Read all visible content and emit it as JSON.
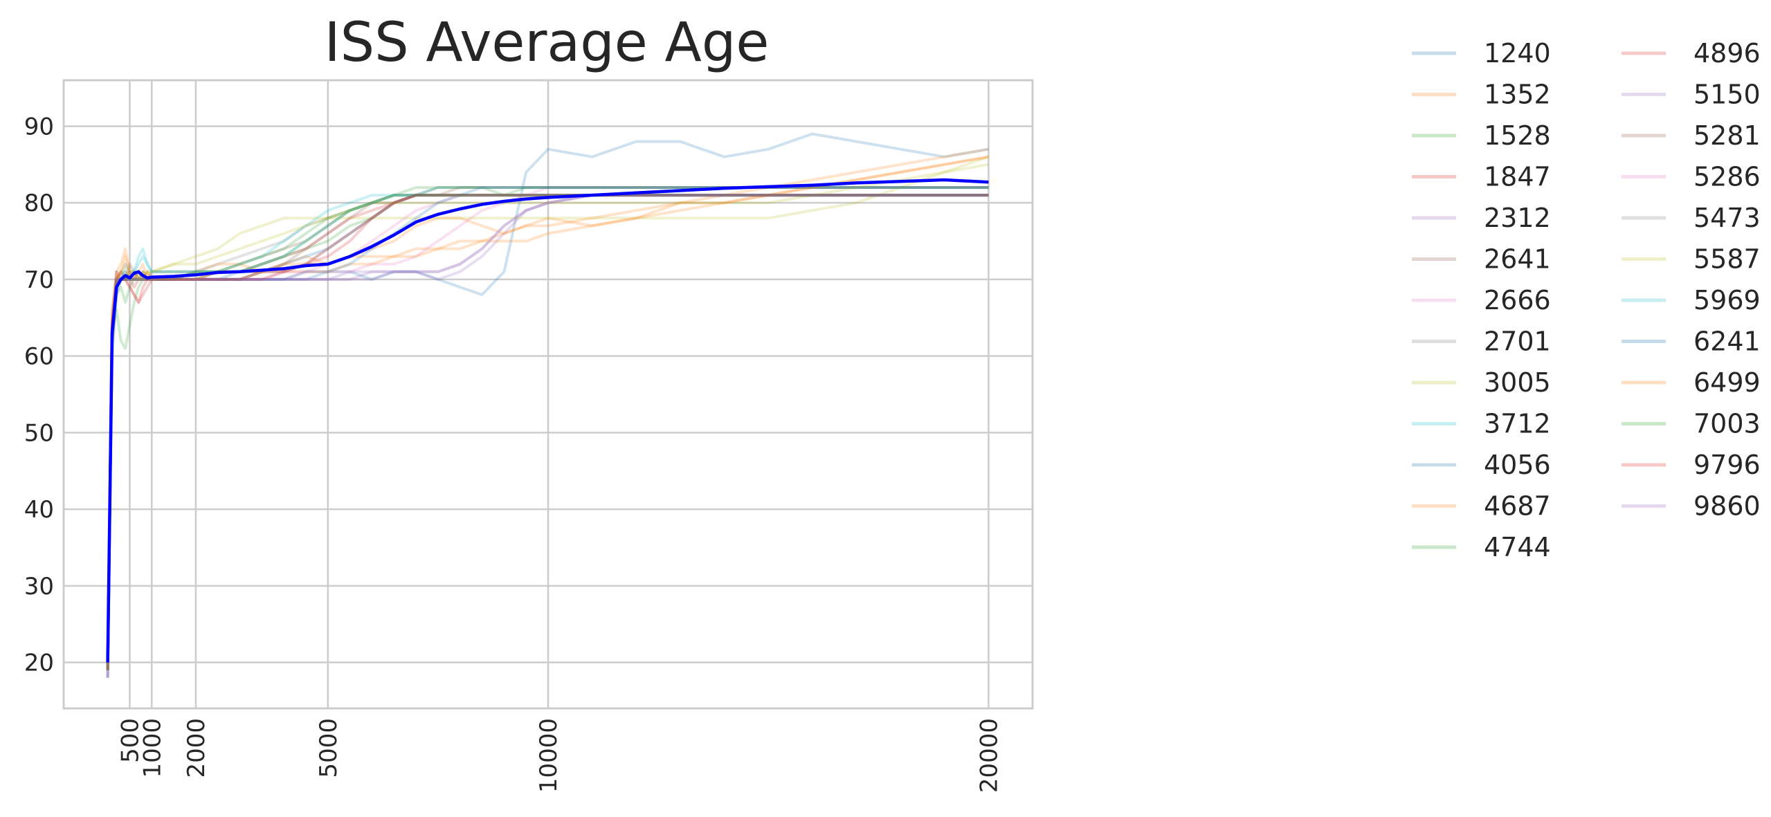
{
  "chart_data": {
    "type": "line",
    "title": "ISS Average Age",
    "xlabel": "",
    "ylabel": "",
    "x_ticks": [
      500,
      1000,
      2000,
      5000,
      10000,
      20000
    ],
    "y_ticks": [
      20,
      30,
      40,
      50,
      60,
      70,
      80,
      90
    ],
    "xlim": [
      -1000,
      21000
    ],
    "ylim": [
      14,
      96
    ],
    "grid": true,
    "legend": {
      "placement": "outside-right",
      "columns": 2
    },
    "x": [
      0,
      100,
      200,
      300,
      400,
      500,
      600,
      700,
      800,
      900,
      1000,
      1500,
      2000,
      2500,
      3000,
      3500,
      4000,
      4500,
      5000,
      5500,
      6000,
      6500,
      7000,
      7500,
      8000,
      8500,
      9000,
      9500,
      10000,
      11000,
      12000,
      13000,
      14000,
      15000,
      16000,
      17000,
      18000,
      19000,
      20000
    ],
    "mean_series": {
      "name": "",
      "color": "#0000ff",
      "values": [
        20,
        63,
        69,
        70,
        70.5,
        70.2,
        70.8,
        71,
        70.5,
        70.2,
        70.3,
        70.4,
        70.6,
        70.9,
        71,
        71.2,
        71.4,
        71.8,
        72,
        73,
        74.3,
        75.8,
        77.5,
        78.5,
        79.2,
        79.8,
        80.2,
        80.5,
        80.7,
        81,
        81.3,
        81.6,
        81.9,
        82.1,
        82.3,
        82.6,
        82.8,
        83,
        82.7
      ]
    },
    "series": [
      {
        "name": "1240",
        "color": "#1f77b4",
        "values": [
          18,
          60,
          68,
          70,
          70,
          70,
          70,
          71,
          70,
          70,
          70,
          70,
          70,
          70,
          70,
          70,
          70,
          70,
          71,
          71,
          70,
          71,
          71,
          70,
          69,
          68,
          71,
          84,
          87,
          86,
          88,
          88,
          86,
          87,
          89,
          88,
          87,
          86,
          87
        ]
      },
      {
        "name": "1352",
        "color": "#ff7f0e",
        "values": [
          19,
          64,
          70,
          71,
          73,
          71,
          70,
          71,
          72,
          70,
          71,
          71,
          71,
          72,
          72,
          71,
          72,
          73,
          72,
          73,
          74,
          75,
          77,
          78,
          78,
          77,
          76,
          77,
          78,
          77,
          78,
          80,
          80,
          81,
          82,
          83,
          84,
          85,
          86
        ]
      },
      {
        "name": "1528",
        "color": "#2ca02c",
        "values": [
          20,
          62,
          68,
          69,
          67,
          69,
          70,
          70,
          71,
          70,
          70,
          70,
          71,
          71,
          71,
          72,
          73,
          74,
          75,
          77,
          78,
          80,
          81,
          82,
          82,
          82,
          81,
          82,
          82,
          82,
          82,
          82,
          82,
          82,
          82,
          82,
          82,
          82,
          82
        ]
      },
      {
        "name": "1847",
        "color": "#d62728",
        "values": [
          19,
          66,
          71,
          70,
          70,
          70,
          69,
          70,
          71,
          70,
          70,
          70,
          70,
          71,
          71,
          72,
          73,
          74,
          76,
          78,
          79,
          80,
          81,
          81,
          81,
          81,
          81,
          81,
          81,
          81,
          81,
          81,
          81,
          81,
          81,
          81,
          81,
          81,
          81
        ]
      },
      {
        "name": "2312",
        "color": "#9467bd",
        "values": [
          18,
          61,
          69,
          70,
          71,
          70,
          70,
          70,
          70,
          70,
          70,
          70,
          70,
          70,
          70,
          70,
          70,
          70,
          70,
          70,
          71,
          71,
          71,
          70,
          71,
          73,
          76,
          79,
          80,
          81,
          81,
          81,
          81,
          81,
          81,
          81,
          81,
          81,
          81
        ]
      },
      {
        "name": "2641",
        "color": "#8c564b",
        "values": [
          19,
          64,
          70,
          71,
          70,
          72,
          71,
          70,
          70,
          71,
          70,
          70,
          71,
          71,
          72,
          73,
          74,
          75,
          77,
          79,
          80,
          81,
          81,
          81,
          82,
          82,
          82,
          82,
          82,
          82,
          82,
          82,
          82,
          82,
          82,
          82,
          82,
          82,
          82
        ]
      },
      {
        "name": "2666",
        "color": "#e377c2",
        "values": [
          20,
          63,
          70,
          70,
          70,
          71,
          70,
          71,
          70,
          70,
          70,
          70,
          70,
          70,
          70,
          70,
          70,
          71,
          71,
          71,
          72,
          72,
          73,
          75,
          77,
          79,
          80,
          81,
          82,
          82,
          82,
          82,
          82,
          82,
          82,
          82,
          82,
          82,
          82
        ]
      },
      {
        "name": "2701",
        "color": "#7f7f7f",
        "values": [
          19,
          62,
          69,
          70,
          70,
          70,
          71,
          70,
          70,
          70,
          71,
          71,
          71,
          72,
          73,
          74,
          75,
          77,
          78,
          79,
          80,
          81,
          81,
          81,
          81,
          81,
          81,
          81,
          81,
          81,
          81,
          81,
          81,
          81,
          81,
          81,
          81,
          81,
          81
        ]
      },
      {
        "name": "3005",
        "color": "#bcbd22",
        "values": [
          20,
          64,
          70,
          71,
          71,
          70,
          70,
          71,
          70,
          71,
          71,
          72,
          73,
          74,
          76,
          77,
          78,
          78,
          78,
          78,
          78,
          78,
          78,
          78,
          78,
          78,
          78,
          78,
          78,
          78,
          78,
          78,
          78,
          78,
          79,
          80,
          82,
          84,
          86
        ]
      },
      {
        "name": "3712",
        "color": "#17becf",
        "values": [
          19,
          63,
          70,
          70,
          72,
          71,
          71,
          73,
          74,
          72,
          71,
          71,
          71,
          71,
          72,
          73,
          75,
          77,
          79,
          80,
          81,
          81,
          81,
          81,
          81,
          81,
          81,
          81,
          81,
          81,
          81,
          81,
          81,
          81,
          81,
          81,
          81,
          81,
          81
        ]
      },
      {
        "name": "4056",
        "color": "#1f77b4",
        "values": [
          19,
          62,
          69,
          70,
          70,
          70,
          70,
          70,
          70,
          70,
          70,
          70,
          70,
          70,
          71,
          71,
          72,
          73,
          74,
          76,
          78,
          80,
          81,
          82,
          82,
          82,
          82,
          82,
          82,
          82,
          82,
          82,
          82,
          82,
          82,
          82,
          82,
          82,
          82
        ]
      },
      {
        "name": "4687",
        "color": "#ff7f0e",
        "values": [
          20,
          65,
          71,
          72,
          74,
          71,
          71,
          70,
          70,
          71,
          70,
          70,
          70,
          70,
          70,
          71,
          71,
          71,
          71,
          72,
          72,
          73,
          73,
          74,
          75,
          75,
          76,
          77,
          77,
          78,
          79,
          80,
          81,
          82,
          83,
          84,
          85,
          86,
          87
        ]
      },
      {
        "name": "4744",
        "color": "#2ca02c",
        "values": [
          19,
          63,
          66,
          62,
          61,
          64,
          67,
          69,
          70,
          70,
          70,
          70,
          70,
          71,
          71,
          72,
          73,
          75,
          77,
          79,
          80,
          81,
          82,
          82,
          82,
          82,
          82,
          82,
          82,
          82,
          82,
          82,
          82,
          82,
          82,
          82,
          82,
          82,
          82
        ]
      },
      {
        "name": "4896",
        "color": "#d62728",
        "values": [
          19,
          64,
          70,
          71,
          70,
          69,
          68,
          67,
          68,
          69,
          70,
          70,
          70,
          70,
          70,
          71,
          71,
          72,
          73,
          75,
          78,
          80,
          81,
          81,
          81,
          81,
          81,
          81,
          81,
          81,
          81,
          81,
          81,
          81,
          81,
          81,
          81,
          81,
          81
        ]
      },
      {
        "name": "5150",
        "color": "#9467bd",
        "values": [
          18,
          62,
          70,
          70,
          70,
          70,
          70,
          70,
          70,
          70,
          70,
          70,
          70,
          70,
          70,
          70,
          70,
          70,
          70,
          71,
          71,
          71,
          71,
          71,
          72,
          74,
          77,
          79,
          80,
          81,
          81,
          81,
          81,
          81,
          81,
          81,
          81,
          81,
          81
        ]
      },
      {
        "name": "5281",
        "color": "#8c564b",
        "values": [
          19,
          63,
          71,
          70,
          70,
          71,
          70,
          70,
          70,
          70,
          70,
          70,
          70,
          70,
          70,
          71,
          72,
          74,
          76,
          78,
          80,
          80,
          81,
          81,
          81,
          81,
          81,
          81,
          81,
          81,
          81,
          81,
          81,
          81,
          81,
          81,
          81,
          81,
          81
        ]
      },
      {
        "name": "5286",
        "color": "#e377c2",
        "values": [
          20,
          64,
          70,
          70,
          70,
          70,
          70,
          70,
          70,
          70,
          70,
          70,
          70,
          70,
          70,
          70,
          71,
          71,
          72,
          73,
          75,
          77,
          79,
          80,
          81,
          81,
          81,
          81,
          81,
          81,
          81,
          81,
          81,
          81,
          81,
          81,
          81,
          81,
          81
        ]
      },
      {
        "name": "5473",
        "color": "#7f7f7f",
        "values": [
          19,
          63,
          70,
          70,
          70,
          70,
          70,
          70,
          70,
          70,
          70,
          70,
          70,
          70,
          70,
          71,
          71,
          72,
          74,
          76,
          78,
          80,
          81,
          81,
          81,
          81,
          81,
          81,
          81,
          81,
          81,
          81,
          81,
          81,
          81,
          81,
          81,
          81,
          81
        ]
      },
      {
        "name": "5587",
        "color": "#bcbd22",
        "values": [
          19,
          64,
          70,
          70,
          70,
          71,
          71,
          70,
          71,
          71,
          71,
          72,
          72,
          73,
          74,
          75,
          76,
          77,
          78,
          79,
          80,
          80,
          80,
          80,
          80,
          80,
          80,
          80,
          80,
          80,
          80,
          80,
          80,
          80,
          81,
          82,
          83,
          84,
          85
        ]
      },
      {
        "name": "5969",
        "color": "#17becf",
        "values": [
          19,
          63,
          70,
          70,
          71,
          70,
          71,
          72,
          73,
          72,
          71,
          71,
          71,
          71,
          71,
          72,
          73,
          75,
          77,
          79,
          80,
          81,
          81,
          81,
          81,
          81,
          81,
          81,
          81,
          81,
          81,
          81,
          81,
          81,
          81,
          81,
          81,
          81,
          81
        ]
      },
      {
        "name": "6241",
        "color": "#1f77b4",
        "values": [
          20,
          63,
          70,
          70,
          70,
          70,
          70,
          70,
          70,
          70,
          70,
          70,
          70,
          70,
          70,
          70,
          70,
          71,
          71,
          72,
          74,
          76,
          78,
          80,
          81,
          82,
          82,
          82,
          82,
          82,
          82,
          82,
          82,
          82,
          82,
          82,
          82,
          82,
          82
        ]
      },
      {
        "name": "6499",
        "color": "#ff7f0e",
        "values": [
          19,
          65,
          70,
          71,
          72,
          70,
          70,
          70,
          70,
          70,
          70,
          70,
          70,
          71,
          71,
          71,
          72,
          72,
          72,
          73,
          73,
          73,
          74,
          74,
          74,
          75,
          75,
          75,
          76,
          77,
          78,
          79,
          80,
          81,
          82,
          83,
          84,
          85,
          86
        ]
      },
      {
        "name": "7003",
        "color": "#2ca02c",
        "values": [
          19,
          62,
          69,
          70,
          70,
          70,
          70,
          70,
          70,
          70,
          70,
          70,
          71,
          71,
          72,
          73,
          74,
          76,
          78,
          79,
          80,
          81,
          81,
          81,
          81,
          81,
          81,
          81,
          81,
          81,
          81,
          81,
          81,
          81,
          81,
          81,
          81,
          81,
          81
        ]
      },
      {
        "name": "9796",
        "color": "#d62728",
        "values": [
          19,
          64,
          70,
          70,
          70,
          69,
          68,
          67,
          69,
          70,
          70,
          70,
          70,
          70,
          70,
          70,
          71,
          72,
          74,
          76,
          78,
          80,
          81,
          81,
          81,
          81,
          81,
          81,
          81,
          81,
          81,
          81,
          81,
          81,
          81,
          81,
          81,
          81,
          81
        ]
      },
      {
        "name": "9860",
        "color": "#9467bd",
        "values": [
          18,
          62,
          70,
          70,
          70,
          70,
          70,
          70,
          70,
          70,
          70,
          70,
          70,
          70,
          70,
          70,
          70,
          70,
          70,
          70,
          70,
          71,
          71,
          71,
          72,
          74,
          77,
          79,
          80,
          81,
          81,
          81,
          81,
          81,
          81,
          81,
          81,
          81,
          81
        ]
      }
    ]
  }
}
